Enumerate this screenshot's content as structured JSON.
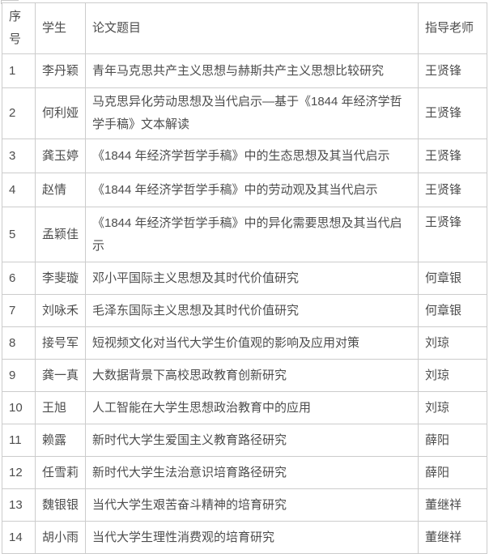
{
  "table": {
    "columns": [
      {
        "key": "num",
        "label": "序号"
      },
      {
        "key": "student",
        "label": "学生"
      },
      {
        "key": "title",
        "label": "论文题目"
      },
      {
        "key": "advisor",
        "label": "指导老师"
      }
    ],
    "rows": [
      {
        "num": "1",
        "student": "李丹颖",
        "title": "青年马克思共产主义思想与赫斯共产主义思想比较研究",
        "advisor": "王贤锋"
      },
      {
        "num": "2",
        "student": "何利娅",
        "title": "马克思异化劳动思想及当代启示—基于《1844 年经济学哲学手稿》文本解读",
        "advisor": "王贤锋"
      },
      {
        "num": "3",
        "student": "龚玉婷",
        "title": "《1844 年经济学哲学手稿》中的生态思想及其当代启示",
        "advisor": "王贤锋"
      },
      {
        "num": "4",
        "student": "赵情",
        "title": "《1844 年经济学哲学手稿》中的劳动观及其当代启示",
        "advisor": "王贤锋"
      },
      {
        "num": "5",
        "student": "孟颖佳",
        "title": "《1844 年经济学哲学手稿》中的异化需要思想及其当代启示",
        "advisor": "王贤锋"
      },
      {
        "num": "6",
        "student": "李斐璇",
        "title": "邓小平国际主义思想及其时代价值研究",
        "advisor": "何章银"
      },
      {
        "num": "7",
        "student": "刘咏禾",
        "title": "毛泽东国际主义思想及其时代价值研究",
        "advisor": "何章银"
      },
      {
        "num": "8",
        "student": "接号军",
        "title": "短视频文化对当代大学生价值观的影响及应用对策",
        "advisor": "刘琼"
      },
      {
        "num": "9",
        "student": "龚一真",
        "title": "大数据背景下高校思政教育创新研究",
        "advisor": "刘琼"
      },
      {
        "num": "10",
        "student": "王旭",
        "title": "人工智能在大学生思想政治教育中的应用",
        "advisor": "刘琼"
      },
      {
        "num": "11",
        "student": "赖露",
        "title": "新时代大学生爱国主义教育路径研究",
        "advisor": "薛阳"
      },
      {
        "num": "12",
        "student": "任雪莉",
        "title": "新时代大学生法治意识培育路径研究",
        "advisor": "薛阳"
      },
      {
        "num": "13",
        "student": "魏银银",
        "title": "当代大学生艰苦奋斗精神的培育研究",
        "advisor": "董继祥"
      },
      {
        "num": "14",
        "student": "胡小雨",
        "title": "当代大学生理性消费观的培育研究",
        "advisor": "董继祥"
      }
    ]
  },
  "colors": {
    "border": "#cccccc",
    "text": "#4d4d4d",
    "background": "#ffffff"
  }
}
